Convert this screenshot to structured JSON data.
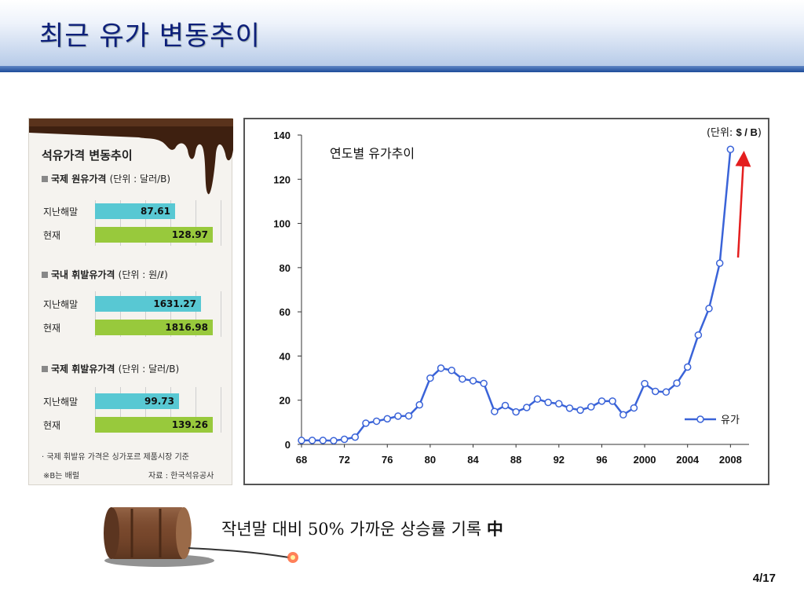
{
  "slide": {
    "title": "최근 유가 변동추이",
    "page": "4/17",
    "summary": "작년말 대비 50% 가까운 상승률 기록",
    "summary_mark": "中"
  },
  "infographic": {
    "heading": "석유가격 변동추이",
    "sections": [
      {
        "title": "국제 원유가격",
        "unit": "(단위 : 달러/B)",
        "rows": [
          {
            "label": "지난해말",
            "value": "87.61",
            "num": 87.61,
            "color": "#58c8d3"
          },
          {
            "label": "현재",
            "value": "128.97",
            "num": 128.97,
            "color": "#98c93c"
          }
        ]
      },
      {
        "title": "국내 휘발유가격",
        "unit": "(단위 : 원/ℓ)",
        "rows": [
          {
            "label": "지난해말",
            "value": "1631.27",
            "num": 1631.27,
            "color": "#58c8d3"
          },
          {
            "label": "현재",
            "value": "1816.98",
            "num": 1816.98,
            "color": "#98c93c"
          }
        ]
      },
      {
        "title": "국제 휘발유가격",
        "unit": "(단위 : 달러/B)",
        "rows": [
          {
            "label": "지난해말",
            "value": "99.73",
            "num": 99.73,
            "color": "#58c8d3"
          },
          {
            "label": "현재",
            "value": "139.26",
            "num": 139.26,
            "color": "#98c93c"
          }
        ]
      }
    ],
    "note": "· 국제 휘발유 가격은 싱가포르 제품시장 기준",
    "footnote_left": "※B는 배럴",
    "footnote_right": "자료 : 한국석유공사"
  },
  "chart_data": {
    "type": "line",
    "title": "연도별 유가추이",
    "unit_label": "(단위:",
    "unit_value": "$ / B",
    "unit_close": ")",
    "xlabel": "",
    "ylabel": "",
    "ylim": [
      0,
      140
    ],
    "yticks": [
      0,
      20,
      40,
      60,
      80,
      100,
      120,
      140
    ],
    "xlim": [
      1968,
      2009
    ],
    "xticks": [
      {
        "value": 1968,
        "label": "68"
      },
      {
        "value": 1972,
        "label": "72"
      },
      {
        "value": 1976,
        "label": "76"
      },
      {
        "value": 1980,
        "label": "80"
      },
      {
        "value": 1984,
        "label": "84"
      },
      {
        "value": 1988,
        "label": "88"
      },
      {
        "value": 1992,
        "label": "92"
      },
      {
        "value": 1996,
        "label": "96"
      },
      {
        "value": 2000,
        "label": "2000"
      },
      {
        "value": 2004,
        "label": "2004"
      },
      {
        "value": 2008,
        "label": "2008"
      }
    ],
    "legend": "bottom-right",
    "series": [
      {
        "name": "유가",
        "color": "#3a63d8",
        "x": [
          1968,
          1969,
          1970,
          1971,
          1972,
          1973,
          1974,
          1975,
          1976,
          1977,
          1978,
          1979,
          1980,
          1981,
          1982,
          1983,
          1984,
          1985,
          1986,
          1987,
          1988,
          1989,
          1990,
          1991,
          1992,
          1993,
          1994,
          1995,
          1996,
          1997,
          1998,
          1999,
          2000,
          2001,
          2002,
          2003,
          2004,
          2005,
          2006,
          2007,
          2008
        ],
        "y": [
          1.8,
          1.8,
          1.8,
          1.7,
          2.3,
          3.3,
          9.6,
          10.5,
          11.6,
          12.8,
          12.9,
          17.9,
          30.0,
          34.5,
          33.5,
          29.6,
          28.8,
          27.6,
          14.9,
          17.6,
          14.7,
          16.7,
          20.5,
          19.0,
          18.4,
          16.4,
          15.5,
          17.0,
          19.6,
          19.6,
          13.4,
          16.5,
          27.5,
          24.0,
          23.7,
          27.7,
          35.0,
          49.5,
          61.5,
          82.0,
          133.5
        ]
      }
    ],
    "arrow_color": "#e41e1e"
  }
}
